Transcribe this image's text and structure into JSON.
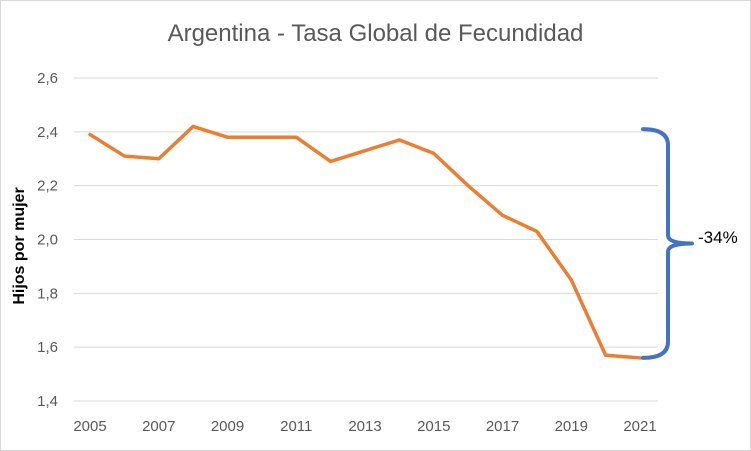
{
  "chart_data": {
    "type": "line",
    "title": "Argentina - Tasa Global de Fecundidad",
    "xlabel": "",
    "ylabel": "Hijos por mujer",
    "x": [
      2005,
      2006,
      2007,
      2008,
      2009,
      2010,
      2011,
      2012,
      2013,
      2014,
      2015,
      2016,
      2017,
      2018,
      2019,
      2020,
      2021
    ],
    "x_tick_labels": [
      "2005",
      "2007",
      "2009",
      "2011",
      "2013",
      "2015",
      "2017",
      "2019",
      "2021"
    ],
    "y_tick_labels": [
      "1,4",
      "1,6",
      "1,8",
      "2,0",
      "2,2",
      "2,4",
      "2,6"
    ],
    "y_ticks": [
      1.4,
      1.6,
      1.8,
      2.0,
      2.2,
      2.4,
      2.6
    ],
    "ylim": [
      1.4,
      2.6
    ],
    "grid": true,
    "series": [
      {
        "values": [
          2.39,
          2.31,
          2.3,
          2.42,
          2.38,
          2.38,
          2.38,
          2.29,
          2.33,
          2.37,
          2.32,
          2.2,
          2.09,
          2.03,
          1.85,
          1.57,
          1.56
        ],
        "color": "#ED7D31"
      }
    ],
    "annotation": {
      "text": "-34%",
      "bracket_from": 2.41,
      "bracket_to": 1.56,
      "color": "#4472C4"
    }
  }
}
